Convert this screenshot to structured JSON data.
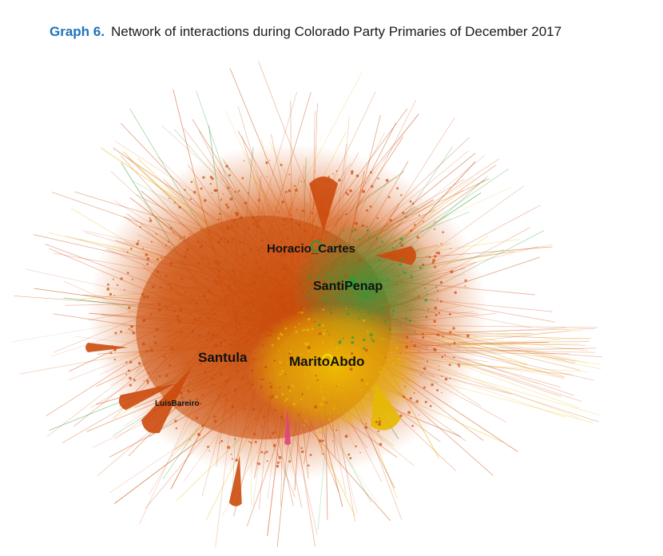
{
  "caption": {
    "label": "Graph 6.",
    "title": "Network of interactions during Colorado Party Primaries of December 2017"
  },
  "colors": {
    "orange": "#cc4a0c",
    "green": "#2e9b3a",
    "yellow": "#e6b800",
    "pink": "#e0457b",
    "label": "#111111",
    "caption_label": "#1f73b7"
  },
  "nodes": {
    "horacio": "Horacio_Cartes",
    "santipenap": "SantiPenap",
    "santula": "Santula",
    "marito": "MaritoAbdo",
    "luisbareiro": "LuisBareiro"
  }
}
